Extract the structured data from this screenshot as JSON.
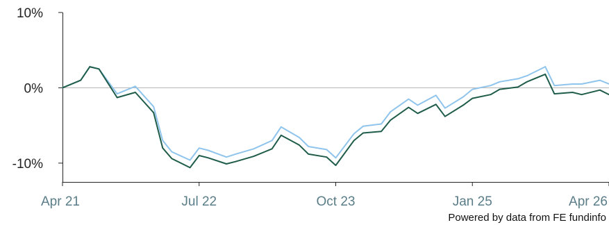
{
  "chart_data": {
    "type": "line",
    "title": "",
    "xlabel": "",
    "ylabel": "",
    "ylim": [
      -12.5,
      10
    ],
    "yticks": [
      {
        "value": 10,
        "label": "10%"
      },
      {
        "value": 0,
        "label": "0%"
      },
      {
        "value": -10,
        "label": "-10%"
      }
    ],
    "xlim": [
      "2021-04",
      "2026-04"
    ],
    "xticks": [
      {
        "value": "2021-04",
        "label": "Apr 21"
      },
      {
        "value": "2022-07",
        "label": "Jul 22"
      },
      {
        "value": "2023-10",
        "label": "Oct 23"
      },
      {
        "value": "2025-01",
        "label": "Jan 25"
      },
      {
        "value": "2026-04",
        "label": "Apr 26"
      }
    ],
    "grid": false,
    "reference_line": 0,
    "series": [
      {
        "color": "#8fc4ec",
        "x": [
          "2021-04",
          "2021-06",
          "2021-07",
          "2021-08",
          "2021-10",
          "2021-12",
          "2022-02",
          "2022-03",
          "2022-04",
          "2022-06",
          "2022-07",
          "2022-08",
          "2022-10",
          "2022-11",
          "2023-01",
          "2023-03",
          "2023-04",
          "2023-06",
          "2023-07",
          "2023-09",
          "2023-10",
          "2023-12",
          "2024-01",
          "2024-03",
          "2024-04",
          "2024-06",
          "2024-07",
          "2024-09",
          "2024-10",
          "2024-12",
          "2025-01",
          "2025-03",
          "2025-04",
          "2025-06",
          "2025-07",
          "2025-09",
          "2025-10",
          "2025-12",
          "2026-01",
          "2026-03",
          "2026-04"
        ],
        "values": [
          0,
          1.0,
          2.8,
          2.5,
          -0.8,
          0.2,
          -2.5,
          -7.0,
          -8.5,
          -9.6,
          -8.0,
          -8.3,
          -9.2,
          -8.8,
          -8.1,
          -7.0,
          -5.2,
          -6.6,
          -7.8,
          -8.2,
          -9.3,
          -6.1,
          -5.1,
          -4.8,
          -3.2,
          -1.5,
          -2.3,
          -1.0,
          -2.7,
          -1.2,
          -0.2,
          0.3,
          0.8,
          1.2,
          1.6,
          2.8,
          0.3,
          0.5,
          0.5,
          1.0,
          0.5
        ]
      },
      {
        "color": "#1f5c4a",
        "x": [
          "2021-04",
          "2021-06",
          "2021-07",
          "2021-08",
          "2021-10",
          "2021-12",
          "2022-02",
          "2022-03",
          "2022-04",
          "2022-06",
          "2022-07",
          "2022-08",
          "2022-10",
          "2022-11",
          "2023-01",
          "2023-03",
          "2023-04",
          "2023-06",
          "2023-07",
          "2023-09",
          "2023-10",
          "2023-12",
          "2024-01",
          "2024-03",
          "2024-04",
          "2024-06",
          "2024-07",
          "2024-09",
          "2024-10",
          "2024-12",
          "2025-01",
          "2025-03",
          "2025-04",
          "2025-06",
          "2025-07",
          "2025-09",
          "2025-10",
          "2025-12",
          "2026-01",
          "2026-03",
          "2026-04"
        ],
        "values": [
          0,
          1.0,
          2.8,
          2.5,
          -1.3,
          -0.6,
          -3.3,
          -8.0,
          -9.4,
          -10.6,
          -9.0,
          -9.3,
          -10.1,
          -9.8,
          -9.1,
          -8.1,
          -6.3,
          -7.6,
          -8.8,
          -9.2,
          -10.3,
          -7.0,
          -6.0,
          -5.8,
          -4.3,
          -2.6,
          -3.4,
          -2.2,
          -3.8,
          -2.3,
          -1.4,
          -0.9,
          -0.2,
          0.1,
          0.8,
          1.8,
          -0.8,
          -0.6,
          -0.9,
          -0.3,
          -0.9
        ]
      }
    ],
    "credit": "Powered by data from FE fundinfo"
  }
}
